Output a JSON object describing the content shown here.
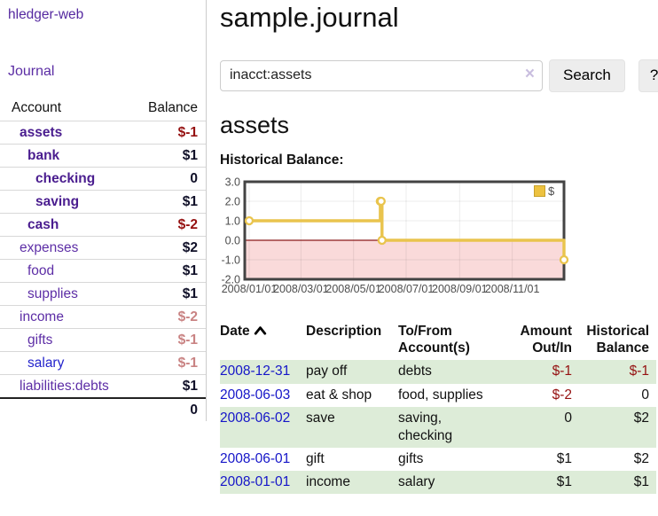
{
  "app": {
    "brand": "hledger-web"
  },
  "sidebar": {
    "journal_link": "Journal",
    "accounts": {
      "col_account": "Account",
      "col_balance": "Balance",
      "rows": [
        {
          "name": "assets",
          "balance": "$-1"
        },
        {
          "name": "bank",
          "balance": "$1"
        },
        {
          "name": "checking",
          "balance": "0"
        },
        {
          "name": "saving",
          "balance": "$1"
        },
        {
          "name": "cash",
          "balance": "$-2"
        },
        {
          "name": "expenses",
          "balance": "$2"
        },
        {
          "name": "food",
          "balance": "$1"
        },
        {
          "name": "supplies",
          "balance": "$1"
        },
        {
          "name": "income",
          "balance": "$-2"
        },
        {
          "name": "gifts",
          "balance": "$-1"
        },
        {
          "name": "salary",
          "balance": "$-1"
        },
        {
          "name": "liabilities:debts",
          "balance": "$1"
        }
      ],
      "total": "0"
    }
  },
  "main": {
    "title": "sample.journal",
    "search": {
      "value": "inacct:assets",
      "clear_icon": "×",
      "search_button": "Search",
      "help_button": "?"
    },
    "account_heading": "assets",
    "section_label": "Historical Balance:",
    "register": {
      "headers": {
        "date": "Date",
        "description": "Description",
        "tofrom": "To/From Account(s)",
        "amount": "Amount Out/In",
        "balance": "Historical Balance"
      },
      "rows": [
        {
          "date": "2008-12-31",
          "description": "pay off",
          "accounts": "debts",
          "amount": "$-1",
          "balance": "$-1"
        },
        {
          "date": "2008-06-03",
          "description": "eat & shop",
          "accounts": "food, supplies",
          "amount": "$-2",
          "balance": "0"
        },
        {
          "date": "2008-06-02",
          "description": "save",
          "accounts": "saving, checking",
          "amount": "0",
          "balance": "$2"
        },
        {
          "date": "2008-06-01",
          "description": "gift",
          "accounts": "gifts",
          "amount": "$1",
          "balance": "$2"
        },
        {
          "date": "2008-01-01",
          "description": "income",
          "accounts": "salary",
          "amount": "$1",
          "balance": "$1"
        }
      ]
    }
  },
  "chart_data": {
    "type": "line",
    "step": true,
    "title": "Historical Balance:",
    "series": [
      {
        "name": "$",
        "color": "#E9C44D",
        "points": [
          [
            "2008-01-01",
            1
          ],
          [
            "2008-06-01",
            2
          ],
          [
            "2008-06-02",
            2
          ],
          [
            "2008-06-03",
            0
          ],
          [
            "2008-12-31",
            -1
          ]
        ]
      }
    ],
    "xlim": [
      "2008-01-01",
      "2008-12-31"
    ],
    "ylim": [
      -2,
      3
    ],
    "y_ticks": [
      "3.0",
      "2.0",
      "1.0",
      "0.0",
      "-1.0",
      "-2.0"
    ],
    "x_ticks": [
      {
        "date": "2008-01-01",
        "label": "2008/01/01"
      },
      {
        "date": "2008-03-01",
        "label": "2008/03/01"
      },
      {
        "date": "2008-05-01",
        "label": "2008/05/01"
      },
      {
        "date": "2008-07-01",
        "label": "2008/07/01"
      },
      {
        "date": "2008-09-01",
        "label": "2008/09/01"
      },
      {
        "date": "2008-11-01",
        "label": "2008/11/01"
      }
    ],
    "legend": {
      "position": "top-right",
      "label": "$",
      "swatch_color": "#EDC240",
      "swatch_border": "#c7a12c"
    },
    "grid": true,
    "colors": {
      "zero_line": "#8b1a1a",
      "negative_fill": "#fadada",
      "grid": "rgba(0,0,0,0.075)",
      "border": "#434343",
      "tick_text": "#4d4d4d"
    }
  }
}
